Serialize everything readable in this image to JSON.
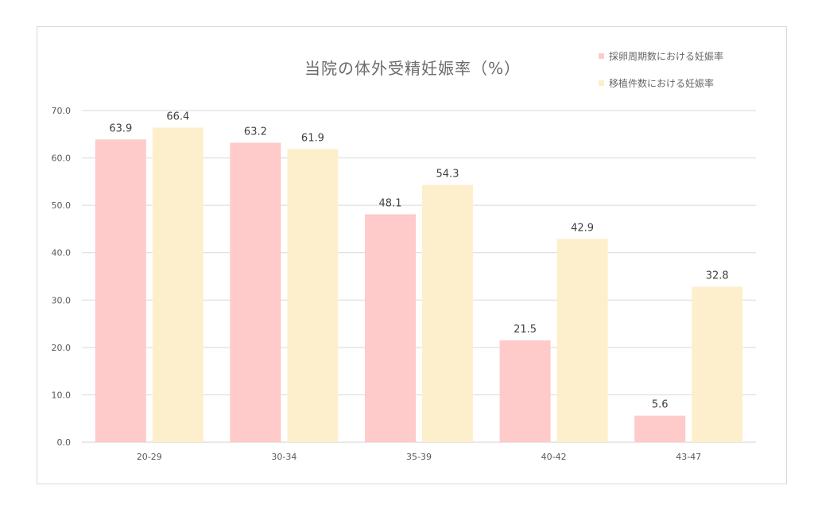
{
  "colors": {
    "series1": "#fecaca",
    "series2": "#feefcc",
    "grid": "#d9d9d9",
    "axis_text": "#595959",
    "label_text": "#404040"
  },
  "chart_data": {
    "type": "bar",
    "title": "当院の体外受精妊娠率（%）",
    "categories": [
      "20-29",
      "30-34",
      "35-39",
      "40-42",
      "43-47"
    ],
    "series": [
      {
        "name": "採卵周期数における妊娠率",
        "values": [
          63.9,
          63.2,
          48.1,
          21.5,
          5.6
        ]
      },
      {
        "name": "移植件数における妊娠率",
        "values": [
          66.4,
          61.9,
          54.3,
          42.9,
          32.8
        ]
      }
    ],
    "y_ticks": [
      "0.0",
      "10.0",
      "20.0",
      "30.0",
      "40.0",
      "50.0",
      "60.0",
      "70.0"
    ],
    "ylim": [
      0,
      70
    ],
    "grid": true,
    "legend_position": "top-right",
    "data_labels": true
  }
}
